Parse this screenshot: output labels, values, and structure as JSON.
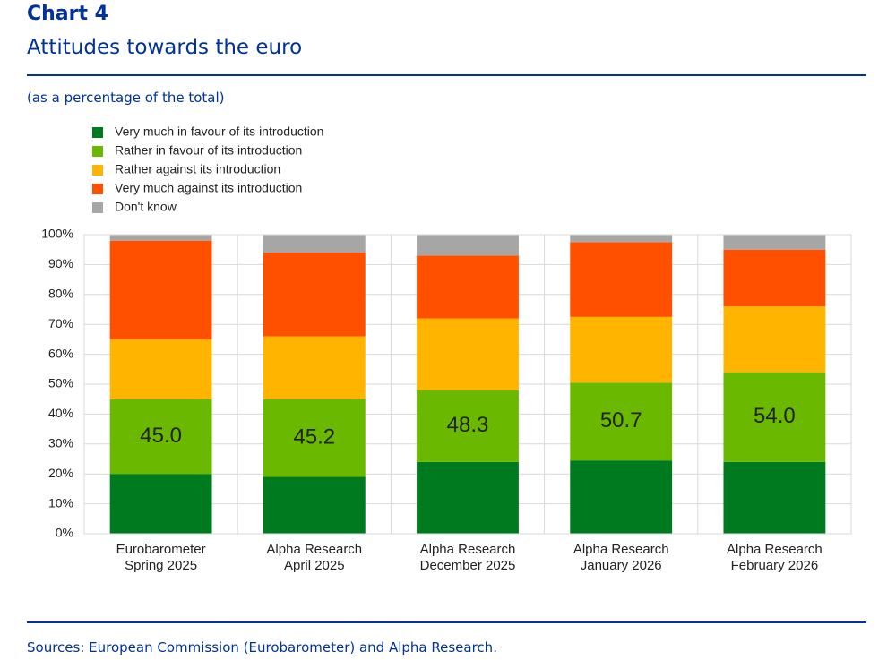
{
  "chart_data": {
    "type": "stacked_bar",
    "title": "Chart 4",
    "subtitle": "Attitudes towards the euro",
    "y_label": "(as a percentage of the total)",
    "source": "Sources: European Commission (Eurobarometer) and Alpha Research.",
    "categories": [
      "Eurobarometer Spring 2025",
      "Alpha Research April 2025",
      "Alpha Research December 2025",
      "Alpha Research January 2026",
      "Alpha Research February 2026"
    ],
    "series": [
      {
        "name": "Very much in favour of its introduction",
        "color": "#007a1e",
        "values": [
          20,
          19,
          24,
          24.5,
          24
        ]
      },
      {
        "name": "Rather in favour of its introduction",
        "color": "#6ab800",
        "values": [
          25,
          26,
          24,
          26,
          30
        ]
      },
      {
        "name": "Rather against its introduction",
        "color": "#ffb400",
        "values": [
          20,
          21,
          24,
          22,
          22
        ]
      },
      {
        "name": "Very much against its introduction",
        "color": "#ff5000",
        "values": [
          33,
          28,
          21,
          25,
          19
        ]
      },
      {
        "name": "Don't know",
        "color": "#a6a6a6",
        "values": [
          2,
          6,
          7,
          2.5,
          5
        ]
      }
    ],
    "favour_totals": [
      {
        "value": 45,
        "label": "45.0"
      },
      {
        "value": 45.2,
        "label": "45.2"
      },
      {
        "value": 48.3,
        "label": "48.3"
      },
      {
        "value": 50.7,
        "label": "50.7"
      },
      {
        "value": 54,
        "label": "54.0"
      }
    ],
    "ylim": [
      0,
      100
    ],
    "yticks": [
      {
        "value": 0,
        "label": "0%"
      },
      {
        "value": 10,
        "label": "10%"
      },
      {
        "value": 20,
        "label": "20%"
      },
      {
        "value": 30,
        "label": "30%"
      },
      {
        "value": 40,
        "label": "40%"
      },
      {
        "value": 50,
        "label": "50%"
      },
      {
        "value": 60,
        "label": "60%"
      },
      {
        "value": 70,
        "label": "70%"
      },
      {
        "value": 80,
        "label": "80%"
      },
      {
        "value": 90,
        "label": "90%"
      },
      {
        "value": 100,
        "label": "100%"
      }
    ],
    "grid": true
  }
}
